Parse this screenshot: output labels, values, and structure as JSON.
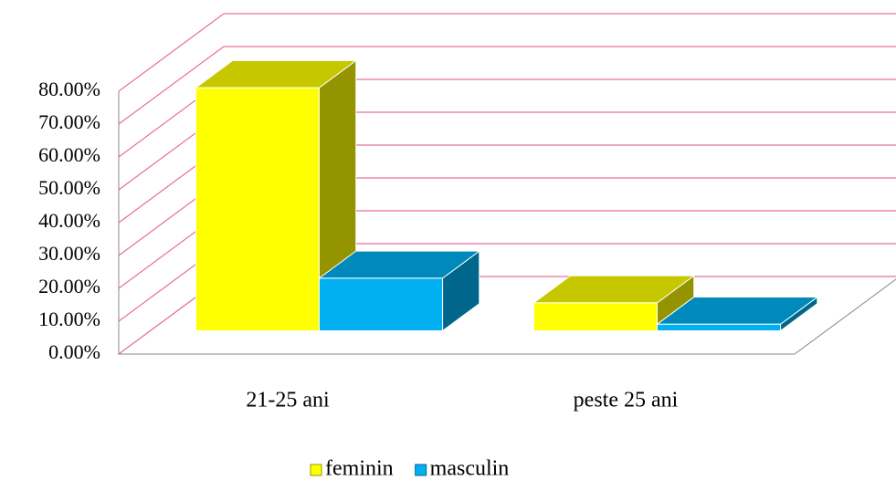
{
  "chart_data": {
    "type": "bar3d",
    "categories": [
      "21-25 ani",
      "peste 25 ani"
    ],
    "series": [
      {
        "name": "feminin",
        "color": "#ffff00",
        "values": [
          74,
          8.5
        ]
      },
      {
        "name": "masculin",
        "color": "#00b0f0",
        "values": [
          16,
          2
        ]
      }
    ],
    "ylim": [
      0,
      80
    ],
    "yticks": [
      {
        "value": 0,
        "label": "0.00%"
      },
      {
        "value": 10,
        "label": "10.00%"
      },
      {
        "value": 20,
        "label": "20.00%"
      },
      {
        "value": 30,
        "label": "30.00%"
      },
      {
        "value": 40,
        "label": "40.00%"
      },
      {
        "value": 50,
        "label": "50.00%"
      },
      {
        "value": 60,
        "label": "60.00%"
      },
      {
        "value": 70,
        "label": "70.00%"
      },
      {
        "value": 80,
        "label": "80.00%"
      }
    ],
    "grid": true,
    "legend": "bottom"
  }
}
